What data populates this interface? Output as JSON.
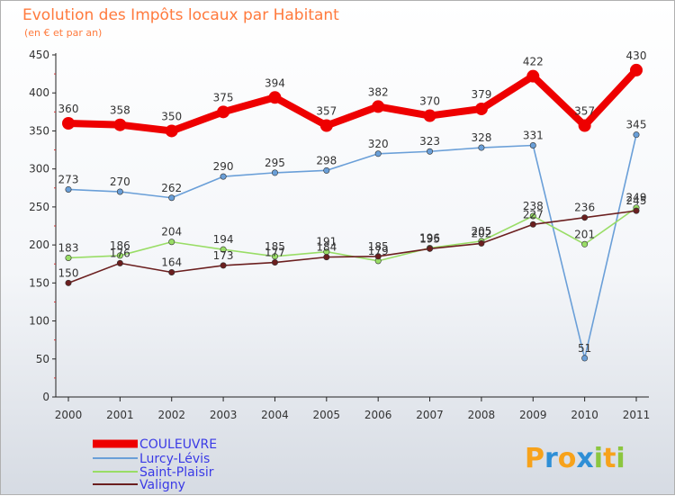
{
  "chart_data": {
    "type": "line",
    "title": "Evolution des Impôts locaux par Habitant",
    "subtitle": "(en € et par an)",
    "categories": [
      "2000",
      "2001",
      "2002",
      "2003",
      "2004",
      "2005",
      "2006",
      "2007",
      "2008",
      "2009",
      "2010",
      "2011"
    ],
    "ylim": [
      0,
      450
    ],
    "yticks": [
      0,
      50,
      100,
      150,
      200,
      250,
      300,
      350,
      400,
      450
    ],
    "grid": false,
    "series": [
      {
        "name": "COULEUVRE",
        "color": "#ee0000",
        "values": [
          360,
          358,
          350,
          375,
          394,
          357,
          382,
          370,
          379,
          422,
          357,
          430
        ]
      },
      {
        "name": "Lurcy-Lévis",
        "color": "#6a9fd8",
        "values": [
          273,
          270,
          262,
          290,
          295,
          298,
          320,
          323,
          328,
          331,
          51,
          345
        ]
      },
      {
        "name": "Saint-Plaisir",
        "color": "#99dd66",
        "values": [
          183,
          186,
          204,
          194,
          185,
          191,
          179,
          196,
          205,
          238,
          201,
          249
        ]
      },
      {
        "name": "Valigny",
        "color": "#6b1f1f",
        "values": [
          150,
          176,
          164,
          173,
          177,
          184,
          185,
          195,
          202,
          227,
          236,
          245
        ]
      }
    ]
  },
  "logo": {
    "text": "Proxiti",
    "letters": [
      "P",
      "r",
      "o",
      "x",
      "i",
      "t",
      "i"
    ],
    "colors": [
      "#f7a21b",
      "#2f8fd6",
      "#f7a21b",
      "#2f8fd6",
      "#8cc63f",
      "#f7a21b",
      "#8cc63f"
    ]
  }
}
